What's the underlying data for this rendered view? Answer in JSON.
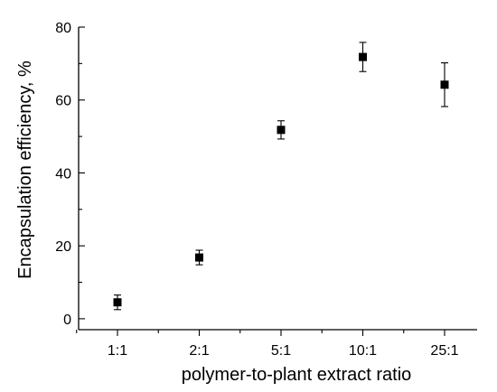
{
  "chart_data": {
    "type": "scatter",
    "title": "",
    "xlabel": "polymer-to-plant extract ratio",
    "ylabel": "Encapsulation efficiency, %",
    "categories": [
      "1:1",
      "2:1",
      "5:1",
      "10:1",
      "25:1"
    ],
    "ylim": [
      -3,
      80
    ],
    "yticks": [
      0,
      20,
      40,
      60,
      80
    ],
    "grid": false,
    "legend": "none",
    "marker": "square",
    "color": "#000000",
    "series": [
      {
        "values": [
          4.5,
          16.8,
          51.8,
          71.8,
          64.2
        ],
        "error": [
          2.0,
          2.0,
          2.5,
          4.0,
          6.0
        ]
      }
    ]
  }
}
